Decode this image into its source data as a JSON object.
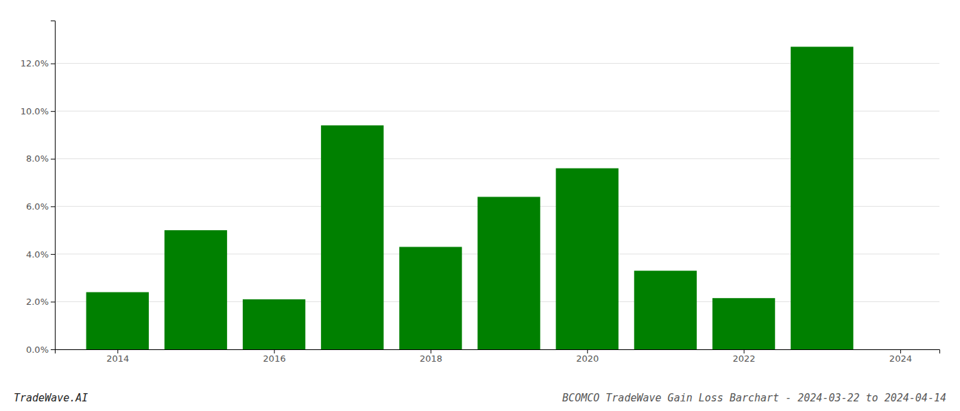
{
  "chart_data": {
    "type": "bar",
    "title": "BCOMCO TradeWave Gain Loss Barchart - 2024-03-22 to 2024-04-14",
    "annotations": [
      "TradeWave.AI"
    ],
    "x": [
      2014,
      2015,
      2016,
      2017,
      2018,
      2019,
      2020,
      2021,
      2022,
      2023
    ],
    "values": [
      0.024,
      0.05,
      0.021,
      0.094,
      0.043,
      0.064,
      0.076,
      0.033,
      0.0215,
      0.127
    ],
    "color": "#008000",
    "xlim": [
      2013.2,
      2024.5
    ],
    "xticks": [
      2014,
      2016,
      2018,
      2020,
      2022,
      2024
    ],
    "ylim": [
      0.0,
      0.138
    ],
    "yticks": [
      {
        "value": 0.0,
        "label": "0.0%"
      },
      {
        "value": 0.02,
        "label": "2.0%"
      },
      {
        "value": 0.04,
        "label": "4.0%"
      },
      {
        "value": 0.06,
        "label": "6.0%"
      },
      {
        "value": 0.08,
        "label": "8.0%"
      },
      {
        "value": 0.1,
        "label": "10.0%"
      },
      {
        "value": 0.12,
        "label": "12.0%"
      }
    ],
    "grid": true
  }
}
